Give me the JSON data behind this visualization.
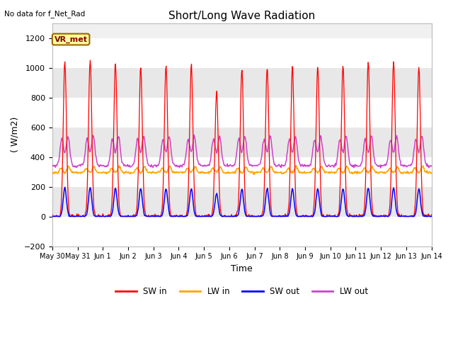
{
  "title": "Short/Long Wave Radiation",
  "xlabel": "Time",
  "ylabel": "( W/m2)",
  "ylim": [
    -200,
    1300
  ],
  "yticks": [
    -200,
    0,
    200,
    400,
    600,
    800,
    1000,
    1200
  ],
  "top_left_text": "No data for f_Net_Rad",
  "box_label": "VR_met",
  "legend_entries": [
    "SW in",
    "LW in",
    "SW out",
    "LW out"
  ],
  "sw_in_color": "#ff0000",
  "lw_in_color": "#ffa500",
  "sw_out_color": "#0000ff",
  "lw_out_color": "#cc44cc",
  "fig_bg": "#ffffff",
  "ax_bg": "#f0f0f0",
  "grid_color": "#ffffff",
  "band_colors": [
    "#ffffff",
    "#e8e8e8"
  ],
  "title_fontsize": 11,
  "axis_fontsize": 9,
  "tick_fontsize": 8,
  "n_days": 15,
  "sw_in_peak": 1030,
  "lw_in_base": 295,
  "lw_in_amp": 60,
  "sw_out_peak": 200,
  "lw_out_base": 340,
  "lw_out_amp": 220,
  "tick_labels": [
    "May 30",
    "May 31",
    "Jun 1",
    "Jun 2",
    "Jun 3",
    "Jun 4",
    "Jun 5",
    "Jun 6",
    "Jun 7",
    "Jun 8",
    "Jun 9",
    "Jun 10",
    "Jun 11",
    "Jun 12",
    "Jun 13",
    "Jun 14"
  ]
}
